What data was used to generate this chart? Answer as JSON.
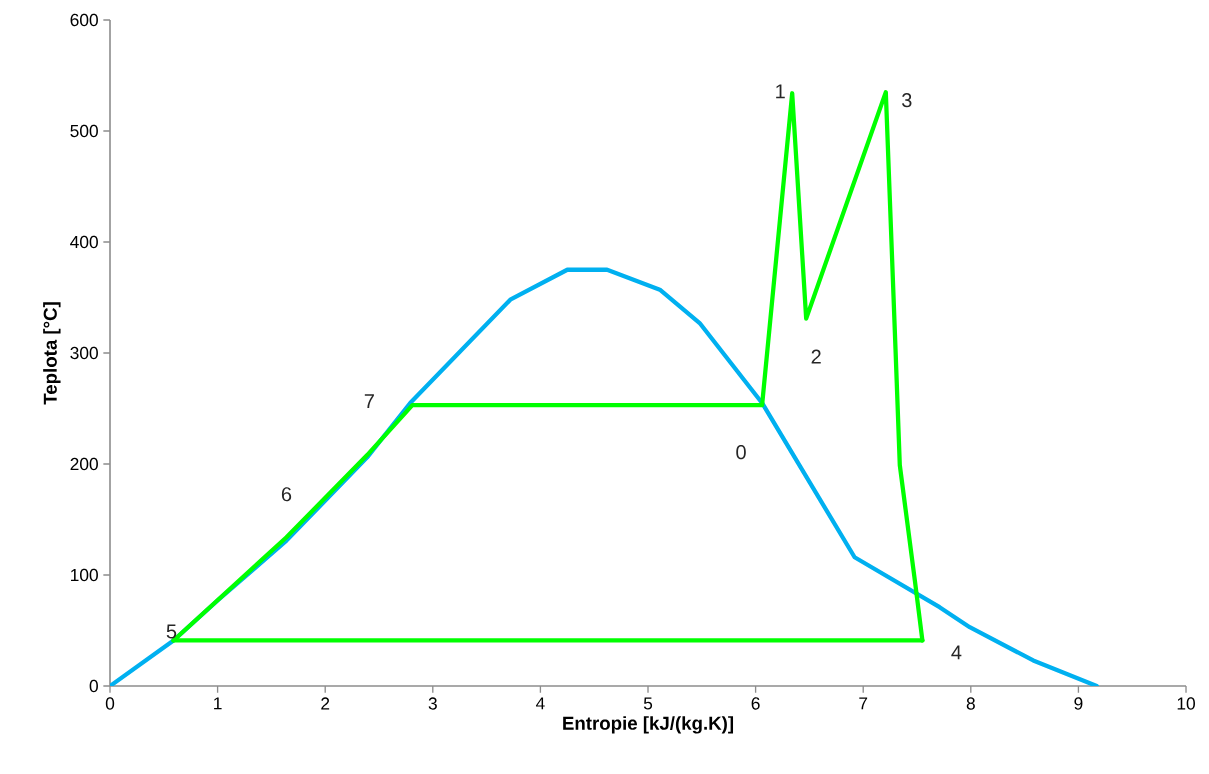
{
  "chart_data": {
    "type": "line",
    "xlabel": "Entropie [kJ/(kg.K)]",
    "ylabel": "Teplota [°C]",
    "xlim": [
      0,
      10
    ],
    "ylim": [
      0,
      600
    ],
    "xticks": [
      0,
      1,
      2,
      3,
      4,
      5,
      6,
      7,
      8,
      9,
      10
    ],
    "yticks": [
      0,
      100,
      200,
      300,
      400,
      500,
      600
    ],
    "marker": "none",
    "line_style": "solid",
    "series": [
      {
        "color": "#00b0f0",
        "x": [
          0,
          0.59,
          1,
          1.64,
          2.39,
          2.79,
          3.72,
          4.25,
          4.62,
          5.11,
          5.48,
          6.06,
          6.92,
          7.71,
          7.99,
          8.58,
          9.17
        ],
        "values": [
          0,
          41,
          77,
          131,
          206,
          255,
          348,
          375,
          375,
          357,
          327,
          255,
          116,
          71,
          53,
          23,
          0
        ]
      },
      {
        "color": "#00ff00",
        "x": [
          0.59,
          1.64,
          2.39,
          2.81,
          6.06,
          6.34,
          6.47,
          7.21,
          7.3,
          7.34,
          7.48,
          7.55
        ],
        "values": [
          41,
          134,
          208,
          253,
          253,
          534,
          331,
          535,
          304,
          199,
          95,
          41
        ]
      },
      {
        "color": "#00ff00",
        "x": [
          0.59,
          7.55
        ],
        "values": [
          41,
          41
        ]
      }
    ],
    "annotations": [
      {
        "text": "1",
        "x": 6.34,
        "y": 534
      },
      {
        "text": "2",
        "x": 6.47,
        "y": 331
      },
      {
        "text": "3",
        "x": 7.21,
        "y": 535
      },
      {
        "text": "4",
        "x": 7.55,
        "y": 41
      },
      {
        "text": "5",
        "x": 0.59,
        "y": 41
      },
      {
        "text": "6",
        "x": 1.64,
        "y": 134
      },
      {
        "text": "7",
        "x": 2.81,
        "y": 253
      },
      {
        "text": "0",
        "x": 6.06,
        "y": 253
      }
    ]
  }
}
